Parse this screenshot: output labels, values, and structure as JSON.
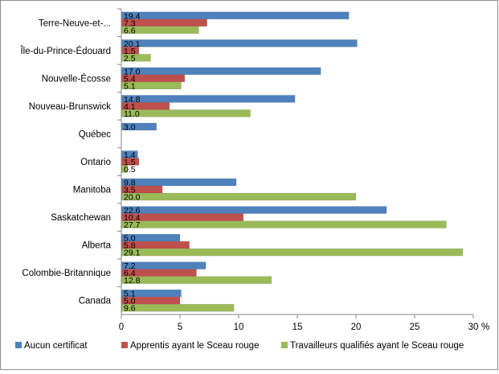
{
  "chart_data": {
    "type": "bar",
    "orientation": "horizontal",
    "title": "",
    "xlabel": "",
    "ylabel": "",
    "x_unit": "%",
    "xlim": [
      0,
      30
    ],
    "x_ticks": [
      0,
      5,
      10,
      15,
      20,
      25,
      30
    ],
    "grid": false,
    "legend_position": "bottom",
    "categories": [
      "Terre-Neuve-et-...",
      "Île-du-Prince-Édouard",
      "Nouvelle-Écosse",
      "Nouveau-Brunswick",
      "Québec",
      "Ontario",
      "Manitoba",
      "Saskatchewan",
      "Alberta",
      "Colombie-Britannique",
      "Canada"
    ],
    "series": [
      {
        "name": "Aucun certificat",
        "color": "#4f81bd",
        "values": [
          19.4,
          20.1,
          17.0,
          14.8,
          3.0,
          1.4,
          9.8,
          22.6,
          5.0,
          7.2,
          5.1
        ],
        "labels": [
          "19.4",
          "20.1",
          "17.0",
          "14.8",
          "3.0",
          "1.4",
          "9.8",
          "22.6",
          "5.0",
          "7.2",
          "5.1"
        ]
      },
      {
        "name": "Apprentis ayant le Sceau rouge",
        "color": "#c0504d",
        "values": [
          7.3,
          1.5,
          5.4,
          4.1,
          null,
          1.5,
          3.5,
          10.4,
          5.8,
          6.4,
          5.0
        ],
        "labels": [
          "7.3",
          "1.5",
          "5.4",
          "4.1",
          "",
          "1.5",
          "3.5",
          "10.4",
          "5.8",
          "6.4",
          "5.0"
        ]
      },
      {
        "name": "Travailleurs qualifiés ayant le Sceau rouge",
        "color": "#9bbb59",
        "values": [
          6.6,
          2.5,
          5.1,
          11.0,
          null,
          0.5,
          20.0,
          27.7,
          29.1,
          12.8,
          9.6
        ],
        "labels": [
          "6.6",
          "2.5",
          "5.1",
          "11.0",
          "",
          "0.5",
          "20.0",
          "27.7",
          "29.1",
          "12.8",
          "9.6"
        ]
      }
    ]
  }
}
